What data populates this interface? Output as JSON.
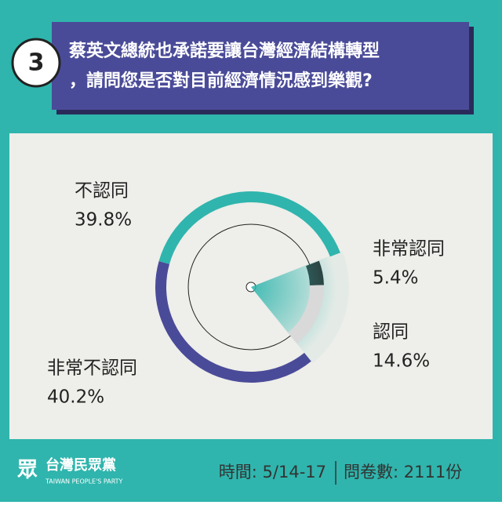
{
  "header": {
    "number": "3",
    "question_lines": [
      "蔡英文總統也承諾要讓台灣經濟結構轉型",
      "，請問您是否對目前經濟情況感到樂觀?"
    ]
  },
  "chart_data": {
    "type": "radial",
    "categories": [
      "非常認同",
      "認同",
      "非常不認同",
      "不認同"
    ],
    "values": [
      5.4,
      14.6,
      40.2,
      39.8
    ],
    "value_labels": [
      "5.4%",
      "14.6%",
      "40.2%",
      "39.8%"
    ],
    "colors": [
      "#2b2b2b",
      "#d9d9d9",
      "#4a4b98",
      "#2fb5ad"
    ]
  },
  "footer": {
    "party": "台灣民眾黨",
    "party_en": "TAIWAN PEOPLE'S PARTY",
    "time": "時間: 5/14-17",
    "sample": "問卷數: 2111份"
  }
}
